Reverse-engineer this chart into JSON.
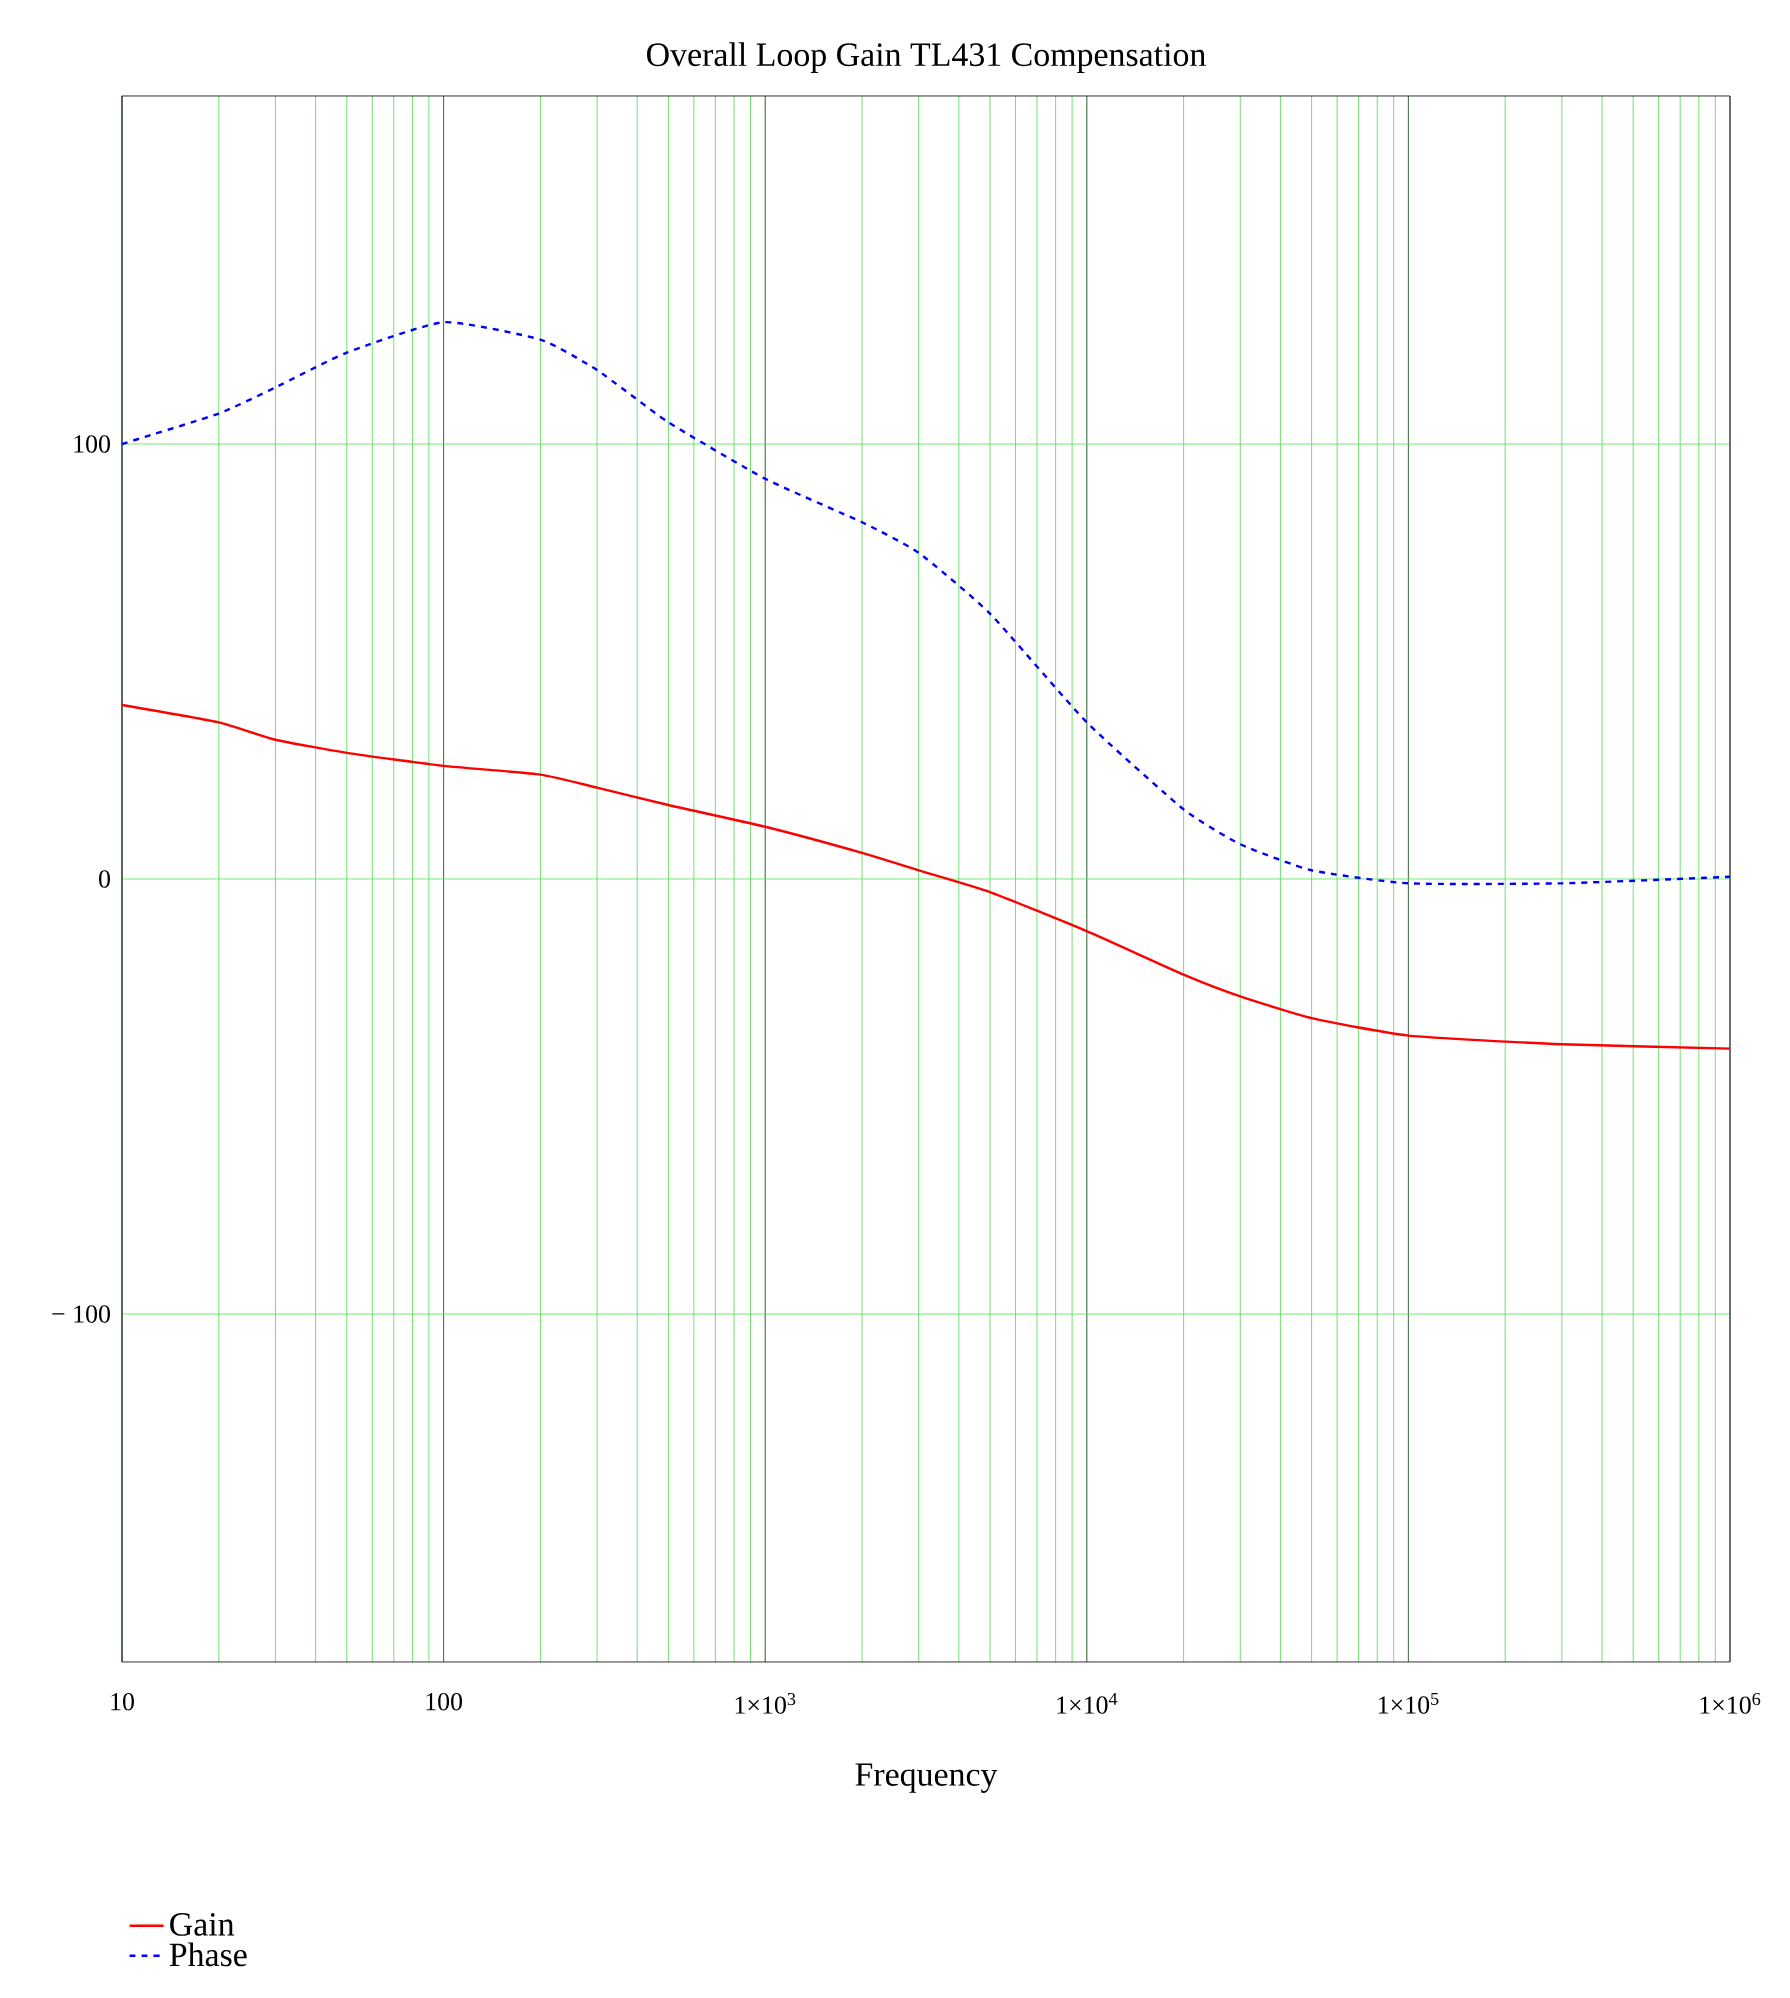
{
  "chart_data": {
    "type": "line",
    "title": "Overall Loop Gain TL431 Compensation",
    "xlabel": "Frequency",
    "log": "x",
    "grid": true,
    "legend": "bottom left",
    "xlim": [
      10,
      1000000
    ],
    "ylim": [
      -180,
      180
    ],
    "xticks": [
      10,
      100,
      {
        "value": 1000,
        "label": "1×10$^{3}$"
      },
      {
        "value": 10000,
        "label": "1×10$^{4}$"
      },
      {
        "value": 100000,
        "label": "1×10$^{5}$"
      },
      {
        "value": 1000000,
        "label": "1×10$^{6}$"
      }
    ],
    "yticks": [
      {
        "value": -100,
        "label": "− 100"
      },
      0,
      100
    ],
    "x": [
      10,
      20,
      30,
      50,
      100,
      200,
      300,
      500,
      1000,
      2000,
      3000,
      5000,
      10000,
      20000,
      30000,
      50000,
      100000,
      300000,
      1000000
    ],
    "series": [
      {
        "name": "Gain",
        "color": "#ff0000",
        "line_style": "solid",
        "values": [
          40,
          36,
          32,
          29,
          26,
          24,
          21,
          17,
          12,
          6,
          2,
          -3,
          -12,
          -22,
          -27,
          -32,
          -36,
          -38,
          -39
        ]
      },
      {
        "name": "Phase",
        "color": "#0000ff",
        "line_style": "dashed",
        "values": [
          100,
          107,
          113,
          121,
          128,
          124,
          117,
          105,
          92,
          82,
          75,
          61,
          36,
          16,
          8,
          2,
          -1,
          -1,
          0.5
        ]
      }
    ]
  }
}
